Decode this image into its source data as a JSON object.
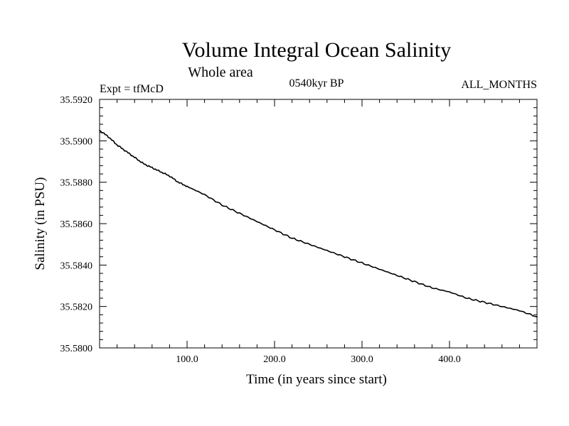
{
  "chart_data": {
    "type": "line",
    "title": "Volume Integral Ocean Salinity",
    "subtitle": "Whole area",
    "left_label": "Expt = tfMcD",
    "center_label": "0540kyr BP",
    "right_label": "ALL_MONTHS",
    "xlabel": "Time (in years since start)",
    "ylabel": "Salinity (in PSU)",
    "xlim": [
      0,
      500
    ],
    "ylim": [
      35.58,
      35.592
    ],
    "x_ticks": [
      100,
      200,
      300,
      400
    ],
    "x_tick_labels": [
      "100.0",
      "200.0",
      "300.0",
      "400.0"
    ],
    "y_ticks": [
      35.58,
      35.582,
      35.584,
      35.586,
      35.588,
      35.59,
      35.592
    ],
    "y_tick_labels": [
      "35.5800",
      "35.5820",
      "35.5840",
      "35.5860",
      "35.5880",
      "35.5900",
      "35.5920"
    ],
    "grid": false,
    "line_color": "#000000",
    "series": [
      {
        "x": [
          0,
          10,
          20,
          30,
          40,
          50,
          60,
          70,
          80,
          90,
          100,
          120,
          140,
          160,
          180,
          200,
          220,
          240,
          260,
          280,
          300,
          320,
          340,
          360,
          380,
          400,
          420,
          440,
          460,
          480,
          500
        ],
        "values": [
          35.5905,
          35.5902,
          35.5898,
          35.5895,
          35.5892,
          35.5889,
          35.5887,
          35.5885,
          35.5883,
          35.588,
          35.5878,
          35.5874,
          35.5869,
          35.5865,
          35.5861,
          35.5857,
          35.5853,
          35.585,
          35.5847,
          35.5844,
          35.5841,
          35.5838,
          35.5835,
          35.5832,
          35.5829,
          35.5827,
          35.5824,
          35.5822,
          35.582,
          35.5818,
          35.5815
        ]
      }
    ]
  }
}
